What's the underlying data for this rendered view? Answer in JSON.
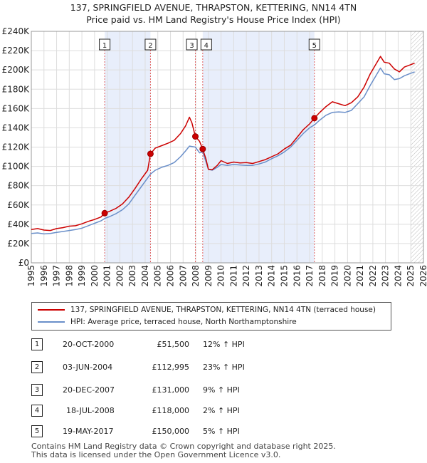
{
  "title_line1": "137, SPRINGFIELD AVENUE, THRAPSTON, KETTERING, NN14 4TN",
  "title_line2": "Price paid vs. HM Land Registry's House Price Index (HPI)",
  "colors": {
    "property": "#cc0000",
    "hpi": "#6a8fc9",
    "shade": "#e8eefb",
    "grid": "#dddddd",
    "vline": "#e06060"
  },
  "chart_data": {
    "type": "line",
    "ylim": [
      0,
      240000
    ],
    "xlim": [
      1995,
      2026
    ],
    "y_ticks": [
      {
        "value": 0,
        "label": "£0"
      },
      {
        "value": 20000,
        "label": "£20K"
      },
      {
        "value": 40000,
        "label": "£40K"
      },
      {
        "value": 60000,
        "label": "£60K"
      },
      {
        "value": 80000,
        "label": "£80K"
      },
      {
        "value": 100000,
        "label": "£100K"
      },
      {
        "value": 120000,
        "label": "£120K"
      },
      {
        "value": 140000,
        "label": "£140K"
      },
      {
        "value": 160000,
        "label": "£160K"
      },
      {
        "value": 180000,
        "label": "£180K"
      },
      {
        "value": 200000,
        "label": "£200K"
      },
      {
        "value": 220000,
        "label": "£220K"
      },
      {
        "value": 240000,
        "label": "£240K"
      }
    ],
    "x_ticks": [
      "1995",
      "1996",
      "1997",
      "1998",
      "1999",
      "2000",
      "2001",
      "2002",
      "2003",
      "2004",
      "2005",
      "2006",
      "2007",
      "2008",
      "2009",
      "2010",
      "2011",
      "2012",
      "2013",
      "2014",
      "2015",
      "2016",
      "2017",
      "2018",
      "2019",
      "2020",
      "2021",
      "2022",
      "2023",
      "2024",
      "2025",
      "2026"
    ],
    "shaded_spans": [
      [
        2000.8,
        2004.42
      ],
      [
        2008.55,
        2017.38
      ]
    ],
    "hatch_from": 2025.0,
    "series": [
      {
        "name": "137, SPRINGFIELD AVENUE, THRAPSTON, KETTERING, NN14 4TN (terraced house)",
        "color": "#cc0000",
        "points": [
          [
            1995,
            34500
          ],
          [
            1995.5,
            35500
          ],
          [
            1996,
            34000
          ],
          [
            1996.5,
            33500
          ],
          [
            1997,
            35500
          ],
          [
            1997.5,
            36500
          ],
          [
            1998,
            38000
          ],
          [
            1998.5,
            38500
          ],
          [
            1999,
            40500
          ],
          [
            1999.5,
            43000
          ],
          [
            2000,
            45000
          ],
          [
            2000.5,
            47500
          ],
          [
            2000.8,
            51500
          ],
          [
            2001.2,
            53500
          ],
          [
            2001.7,
            56500
          ],
          [
            2002.2,
            61000
          ],
          [
            2002.7,
            68000
          ],
          [
            2003.2,
            77000
          ],
          [
            2003.7,
            87000
          ],
          [
            2004.2,
            96000
          ],
          [
            2004.42,
            112995
          ],
          [
            2004.8,
            119000
          ],
          [
            2005.3,
            121500
          ],
          [
            2005.8,
            124000
          ],
          [
            2006.3,
            127000
          ],
          [
            2006.8,
            134000
          ],
          [
            2007.2,
            142000
          ],
          [
            2007.5,
            151000
          ],
          [
            2007.7,
            145000
          ],
          [
            2007.97,
            131000
          ],
          [
            2008.3,
            126000
          ],
          [
            2008.55,
            118000
          ],
          [
            2008.8,
            108000
          ],
          [
            2009.0,
            97000
          ],
          [
            2009.3,
            96500
          ],
          [
            2009.7,
            101000
          ],
          [
            2010.0,
            106000
          ],
          [
            2010.5,
            103000
          ],
          [
            2011.0,
            104500
          ],
          [
            2011.5,
            103500
          ],
          [
            2012.0,
            104000
          ],
          [
            2012.5,
            103000
          ],
          [
            2013.0,
            105000
          ],
          [
            2013.5,
            107000
          ],
          [
            2014.0,
            110000
          ],
          [
            2014.5,
            113000
          ],
          [
            2015.0,
            118000
          ],
          [
            2015.5,
            122000
          ],
          [
            2016.0,
            130000
          ],
          [
            2016.5,
            138000
          ],
          [
            2017.0,
            144000
          ],
          [
            2017.38,
            150000
          ],
          [
            2017.8,
            156000
          ],
          [
            2018.3,
            162000
          ],
          [
            2018.8,
            167000
          ],
          [
            2019.3,
            165000
          ],
          [
            2019.8,
            163000
          ],
          [
            2020.3,
            166000
          ],
          [
            2020.8,
            172000
          ],
          [
            2021.3,
            182000
          ],
          [
            2021.8,
            196000
          ],
          [
            2022.2,
            205000
          ],
          [
            2022.6,
            214000
          ],
          [
            2022.9,
            208000
          ],
          [
            2023.3,
            207000
          ],
          [
            2023.7,
            201000
          ],
          [
            2024.1,
            198000
          ],
          [
            2024.5,
            203000
          ],
          [
            2024.9,
            205000
          ],
          [
            2025.3,
            207000
          ]
        ]
      },
      {
        "name": "HPI: Average price, terraced house, North Northamptonshire",
        "color": "#6a8fc9",
        "points": [
          [
            1995,
            30500
          ],
          [
            1995.5,
            31000
          ],
          [
            1996,
            30000
          ],
          [
            1996.5,
            30500
          ],
          [
            1997,
            31500
          ],
          [
            1997.5,
            32500
          ],
          [
            1998,
            33500
          ],
          [
            1998.5,
            34500
          ],
          [
            1999,
            36000
          ],
          [
            1999.5,
            38500
          ],
          [
            2000,
            41000
          ],
          [
            2000.5,
            43500
          ],
          [
            2000.8,
            46000
          ],
          [
            2001.2,
            48000
          ],
          [
            2001.7,
            51000
          ],
          [
            2002.2,
            55000
          ],
          [
            2002.7,
            61000
          ],
          [
            2003.2,
            70000
          ],
          [
            2003.7,
            79000
          ],
          [
            2004.2,
            88000
          ],
          [
            2004.42,
            92000
          ],
          [
            2004.8,
            96000
          ],
          [
            2005.3,
            99000
          ],
          [
            2005.8,
            101000
          ],
          [
            2006.3,
            104000
          ],
          [
            2006.8,
            110000
          ],
          [
            2007.2,
            116000
          ],
          [
            2007.5,
            121000
          ],
          [
            2007.97,
            120000
          ],
          [
            2008.3,
            114000
          ],
          [
            2008.55,
            115000
          ],
          [
            2008.8,
            105000
          ],
          [
            2009.0,
            97000
          ],
          [
            2009.3,
            96000
          ],
          [
            2009.7,
            99000
          ],
          [
            2010.0,
            102000
          ],
          [
            2010.5,
            101000
          ],
          [
            2011.0,
            102000
          ],
          [
            2011.5,
            101500
          ],
          [
            2012.0,
            101000
          ],
          [
            2012.5,
            101000
          ],
          [
            2013.0,
            102500
          ],
          [
            2013.5,
            104500
          ],
          [
            2014.0,
            108000
          ],
          [
            2014.5,
            111000
          ],
          [
            2015.0,
            115000
          ],
          [
            2015.5,
            120000
          ],
          [
            2016.0,
            127000
          ],
          [
            2016.5,
            134000
          ],
          [
            2017.0,
            140000
          ],
          [
            2017.38,
            143000
          ],
          [
            2017.8,
            148000
          ],
          [
            2018.3,
            153000
          ],
          [
            2018.8,
            156000
          ],
          [
            2019.3,
            156500
          ],
          [
            2019.8,
            156000
          ],
          [
            2020.3,
            158000
          ],
          [
            2020.8,
            165000
          ],
          [
            2021.3,
            172000
          ],
          [
            2021.8,
            184000
          ],
          [
            2022.2,
            193000
          ],
          [
            2022.6,
            202000
          ],
          [
            2022.9,
            196000
          ],
          [
            2023.3,
            195000
          ],
          [
            2023.7,
            190000
          ],
          [
            2024.1,
            191000
          ],
          [
            2024.5,
            194000
          ],
          [
            2024.9,
            196000
          ],
          [
            2025.3,
            198000
          ]
        ]
      }
    ],
    "sales": [
      {
        "label": "1",
        "x": 2000.8,
        "price": 51500
      },
      {
        "label": "2",
        "x": 2004.42,
        "price": 112995
      },
      {
        "label": "3",
        "x": 2007.97,
        "price": 131000
      },
      {
        "label": "4",
        "x": 2008.55,
        "price": 118000
      },
      {
        "label": "5",
        "x": 2017.38,
        "price": 150000
      }
    ]
  },
  "legend": {
    "property": "137, SPRINGFIELD AVENUE, THRAPSTON, KETTERING, NN14 4TN (terraced house)",
    "hpi": "HPI: Average price, terraced house, North Northamptonshire"
  },
  "transactions": [
    {
      "num": "1",
      "date": "20-OCT-2000",
      "price": "£51,500",
      "hpi": "12% ↑ HPI"
    },
    {
      "num": "2",
      "date": "03-JUN-2004",
      "price": "£112,995",
      "hpi": "23% ↑ HPI"
    },
    {
      "num": "3",
      "date": "20-DEC-2007",
      "price": "£131,000",
      "hpi": "9% ↑ HPI"
    },
    {
      "num": "4",
      "date": "18-JUL-2008",
      "price": "£118,000",
      "hpi": "2% ↑ HPI"
    },
    {
      "num": "5",
      "date": "19-MAY-2017",
      "price": "£150,000",
      "hpi": "5% ↑ HPI"
    }
  ],
  "footer_line1": "Contains HM Land Registry data © Crown copyright and database right 2025.",
  "footer_line2": "This data is licensed under the Open Government Licence v3.0."
}
